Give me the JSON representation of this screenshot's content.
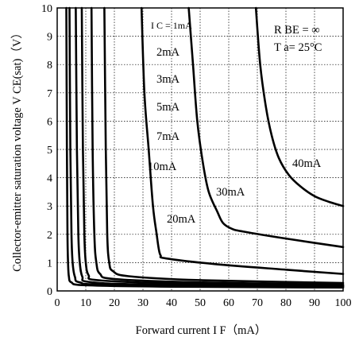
{
  "chart_data": {
    "type": "line",
    "xlabel": "Forward current I F（mA）",
    "ylabel": "Collector-emitter saturation voltage V CE(sat)（V）",
    "xlim": [
      0,
      100
    ],
    "ylim": [
      0,
      10
    ],
    "x_ticks": [
      "0",
      "10",
      "20",
      "30",
      "40",
      "50",
      "60",
      "70",
      "80",
      "90",
      "100"
    ],
    "y_ticks": [
      "0",
      "1",
      "2",
      "3",
      "4",
      "5",
      "6",
      "7",
      "8",
      "9",
      "10"
    ],
    "grid": true,
    "conditions": [
      "R BE = ∞",
      "T a= 25°C"
    ],
    "series": [
      {
        "name": "IC = 1mA",
        "label": "I C = 1mA",
        "points": [
          [
            3.2,
            10
          ],
          [
            3.4,
            5
          ],
          [
            3.6,
            2
          ],
          [
            3.8,
            1
          ],
          [
            4.1,
            0.5
          ],
          [
            5,
            0.3
          ],
          [
            10,
            0.2
          ],
          [
            40,
            0.15
          ],
          [
            100,
            0.12
          ]
        ]
      },
      {
        "name": "IC = 2mA",
        "label": "2mA",
        "points": [
          [
            4.3,
            10
          ],
          [
            4.6,
            5
          ],
          [
            5,
            2
          ],
          [
            5.4,
            1
          ],
          [
            6.2,
            0.5
          ],
          [
            8,
            0.3
          ],
          [
            20,
            0.22
          ],
          [
            100,
            0.15
          ]
        ]
      },
      {
        "name": "IC = 3mA",
        "label": "3mA",
        "points": [
          [
            6.5,
            10
          ],
          [
            6.9,
            5
          ],
          [
            7.4,
            2
          ],
          [
            7.9,
            1
          ],
          [
            8.8,
            0.5
          ],
          [
            11,
            0.32
          ],
          [
            30,
            0.23
          ],
          [
            100,
            0.17
          ]
        ]
      },
      {
        "name": "IC = 5mA",
        "label": "5mA",
        "points": [
          [
            8.6,
            10
          ],
          [
            9,
            5
          ],
          [
            9.5,
            2
          ],
          [
            10,
            1
          ],
          [
            11,
            0.55
          ],
          [
            14,
            0.38
          ],
          [
            40,
            0.27
          ],
          [
            100,
            0.2
          ]
        ]
      },
      {
        "name": "IC = 7mA",
        "label": "7mA",
        "points": [
          [
            12,
            10
          ],
          [
            12.4,
            5
          ],
          [
            13,
            2
          ],
          [
            13.7,
            1
          ],
          [
            15,
            0.6
          ],
          [
            20,
            0.42
          ],
          [
            50,
            0.3
          ],
          [
            100,
            0.22
          ]
        ]
      },
      {
        "name": "IC = 10mA",
        "label": "10mA",
        "points": [
          [
            16.5,
            10
          ],
          [
            17,
            5
          ],
          [
            17.5,
            2
          ],
          [
            18.2,
            1
          ],
          [
            19.5,
            0.7
          ],
          [
            25,
            0.52
          ],
          [
            50,
            0.38
          ],
          [
            100,
            0.28
          ]
        ]
      },
      {
        "name": "IC = 20mA",
        "label": "20mA",
        "points": [
          [
            29.5,
            10
          ],
          [
            30.5,
            7
          ],
          [
            32,
            5
          ],
          [
            33.5,
            3
          ],
          [
            34.8,
            2
          ],
          [
            35.5,
            1.5
          ],
          [
            36.2,
            1.25
          ],
          [
            38,
            1.15
          ],
          [
            55,
            0.95
          ],
          [
            80,
            0.75
          ],
          [
            100,
            0.6
          ]
        ]
      },
      {
        "name": "IC = 30mA",
        "label": "30mA",
        "points": [
          [
            46,
            10
          ],
          [
            47.5,
            8
          ],
          [
            49,
            6
          ],
          [
            51,
            4.5
          ],
          [
            53,
            3.5
          ],
          [
            56,
            2.8
          ],
          [
            58,
            2.4
          ],
          [
            61,
            2.2
          ],
          [
            65,
            2.1
          ],
          [
            80,
            1.85
          ],
          [
            100,
            1.55
          ]
        ]
      },
      {
        "name": "IC = 40mA",
        "label": "40mA",
        "points": [
          [
            69.5,
            10
          ],
          [
            71,
            8
          ],
          [
            73,
            6.5
          ],
          [
            75,
            5.5
          ],
          [
            77.5,
            4.7
          ],
          [
            81,
            4.1
          ],
          [
            85,
            3.7
          ],
          [
            90,
            3.35
          ],
          [
            95,
            3.15
          ],
          [
            100,
            3
          ]
        ]
      }
    ]
  }
}
